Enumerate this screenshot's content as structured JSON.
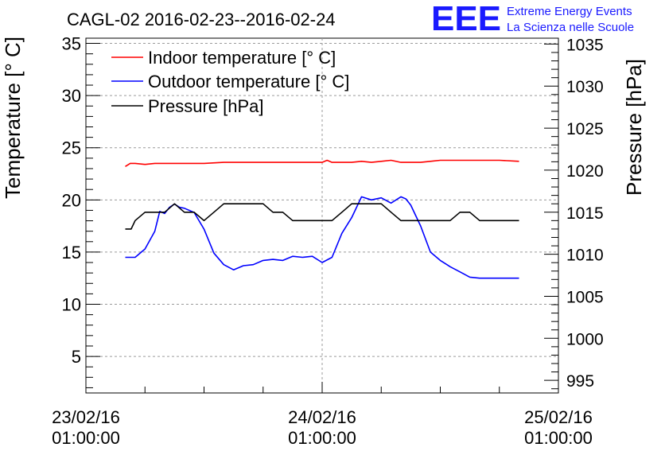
{
  "chart_data": {
    "type": "line",
    "title": "CAGL-02 2016-02-23--2016-02-24",
    "brand": {
      "logo": "EEE",
      "line1": "Extreme Energy Events",
      "line2": "La Scienza nelle Scuole",
      "color": "#1a1aff"
    },
    "xaxis": {
      "ticks": [
        {
          "x": 0,
          "date": "23/02/16",
          "time": "01:00:00"
        },
        {
          "x": 24,
          "date": "24/02/16",
          "time": "01:00:00"
        },
        {
          "x": 48,
          "date": "25/02/16",
          "time": "01:00:00"
        }
      ],
      "xlim": [
        0,
        48
      ]
    },
    "yaxis_left": {
      "label": "Temperature [° C]",
      "ylim": [
        1.5,
        35.5
      ],
      "ticks": [
        5,
        10,
        15,
        20,
        25,
        30,
        35
      ]
    },
    "yaxis_right": {
      "label": "Pressure [hPa]",
      "ylim": [
        993.5,
        1035.7
      ],
      "ticks": [
        995,
        1000,
        1005,
        1010,
        1015,
        1020,
        1025,
        1030,
        1035
      ]
    },
    "grid": true,
    "legend_position": "top-left",
    "series": [
      {
        "name": "Indoor temperature [° C]",
        "color": "#ff0000",
        "axis": "left",
        "x": [
          4,
          4.5,
          5,
          6,
          7,
          8,
          9,
          10,
          11,
          12,
          14,
          16,
          18,
          20,
          22,
          24,
          24.5,
          25,
          26,
          27,
          28,
          29,
          30,
          31,
          32,
          33,
          34,
          35,
          36,
          38,
          40,
          42,
          44
        ],
        "y": [
          23.2,
          23.5,
          23.5,
          23.4,
          23.5,
          23.5,
          23.5,
          23.5,
          23.5,
          23.5,
          23.6,
          23.6,
          23.6,
          23.6,
          23.6,
          23.6,
          23.8,
          23.6,
          23.6,
          23.6,
          23.7,
          23.6,
          23.7,
          23.8,
          23.6,
          23.6,
          23.6,
          23.7,
          23.8,
          23.8,
          23.8,
          23.8,
          23.7
        ]
      },
      {
        "name": "Outdoor temperature [° C]",
        "color": "#0000ff",
        "axis": "left",
        "x": [
          4,
          5,
          6,
          7,
          7.5,
          8,
          8.5,
          9,
          9.5,
          10,
          11,
          12,
          13,
          14,
          15,
          16,
          17,
          18,
          19,
          20,
          21,
          22,
          23,
          24,
          25,
          26,
          27,
          28,
          29,
          30,
          31,
          32,
          32.5,
          33,
          34,
          35,
          36,
          36.5,
          37,
          38,
          39,
          40,
          41,
          42,
          43,
          44
        ],
        "y": [
          14.5,
          14.5,
          15.3,
          17.0,
          18.9,
          18.7,
          19.3,
          19.6,
          19.3,
          19.2,
          18.8,
          17.2,
          14.9,
          13.8,
          13.3,
          13.7,
          13.8,
          14.2,
          14.3,
          14.2,
          14.6,
          14.5,
          14.6,
          14.0,
          14.5,
          16.8,
          18.3,
          20.3,
          20.0,
          20.2,
          19.7,
          20.3,
          20.1,
          19.5,
          17.5,
          15.0,
          14.2,
          13.9,
          13.6,
          13.1,
          12.6,
          12.5,
          12.5,
          12.5,
          12.5,
          12.5
        ]
      },
      {
        "name": "Pressure [hPa]",
        "color": "#000000",
        "axis": "right",
        "x": [
          4,
          4.6,
          5,
          6,
          7,
          8,
          9,
          10,
          11,
          12,
          13,
          14,
          15,
          16,
          17,
          18,
          19,
          20,
          21,
          22,
          23,
          24,
          25,
          26,
          27,
          28,
          29,
          30,
          31,
          32,
          33,
          34,
          35,
          36,
          37,
          38,
          39,
          40,
          41,
          42,
          43,
          44
        ],
        "y": [
          1013,
          1013,
          1014,
          1015,
          1015,
          1015,
          1016,
          1015,
          1015,
          1014,
          1015,
          1016,
          1016,
          1016,
          1016,
          1016,
          1015,
          1015,
          1014,
          1014,
          1014,
          1014,
          1014,
          1015,
          1016,
          1016,
          1016,
          1016,
          1015,
          1014,
          1014,
          1014,
          1014,
          1014,
          1014,
          1015,
          1015,
          1014,
          1014,
          1014,
          1014,
          1014
        ]
      }
    ]
  }
}
